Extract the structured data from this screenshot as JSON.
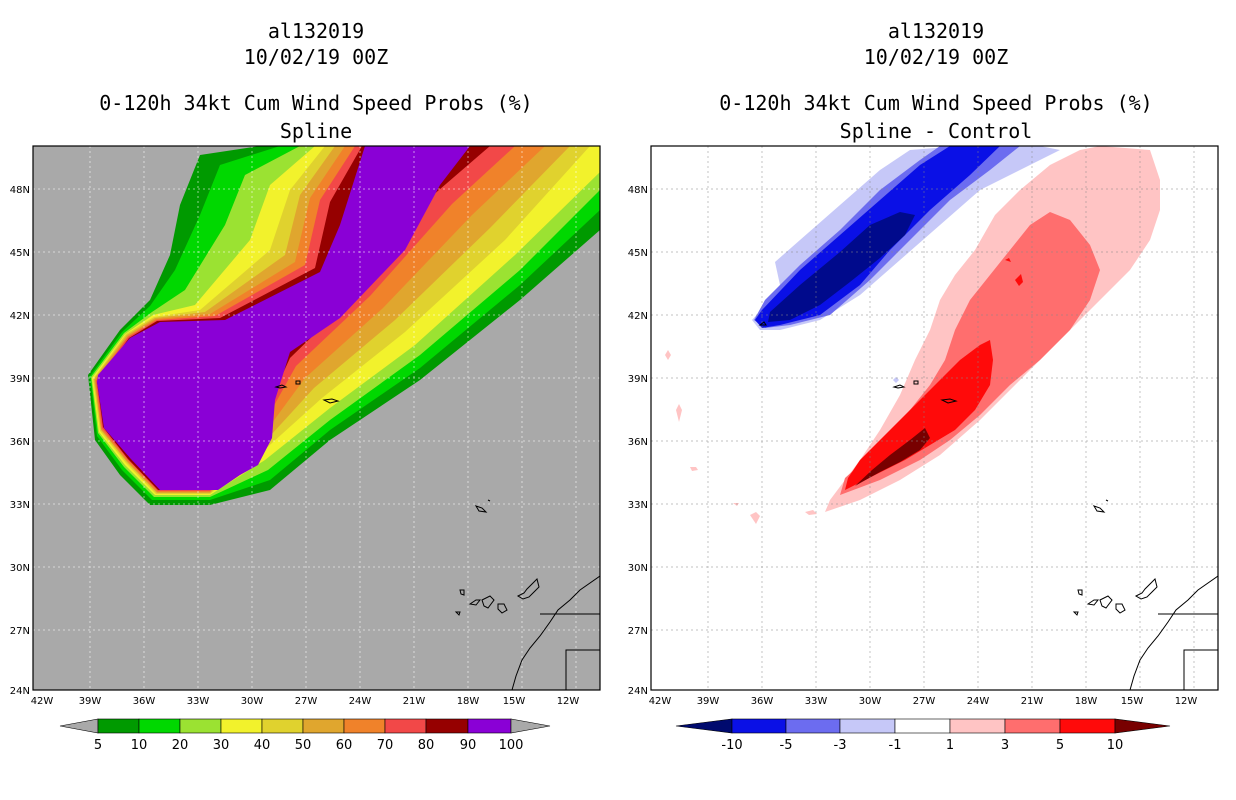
{
  "left_panel": {
    "storm_id": "al132019",
    "datetime": "10/02/19 00Z",
    "product": "0-120h 34kt Cum Wind Speed Probs (%)",
    "subtitle": "Spline",
    "colorbar": {
      "labels": [
        "5",
        "10",
        "20",
        "30",
        "40",
        "50",
        "60",
        "70",
        "80",
        "90",
        "100"
      ],
      "colors": [
        "#009a00",
        "#00d800",
        "#9be232",
        "#f2f22c",
        "#e0d22e",
        "#e0a62e",
        "#f0822a",
        "#f24848",
        "#960000",
        "#8a00d6"
      ],
      "end_color": "#a9a9a9"
    },
    "background_color": "#a9a9a9"
  },
  "right_panel": {
    "storm_id": "al132019",
    "datetime": "10/02/19 00Z",
    "product": "0-120h 34kt Cum Wind Speed Probs (%)",
    "subtitle": "Spline - Control",
    "colorbar": {
      "labels": [
        "-10",
        "-5",
        "-3",
        "-1",
        "1",
        "3",
        "5",
        "10"
      ],
      "colors": [
        "#000a8c",
        "#0a10e6",
        "#6c6cf0",
        "#c6c8f8",
        "#ffffff",
        "#ffc4c4",
        "#ff6e6e",
        "#ff0a0a"
      ],
      "end_low": "#000a6e",
      "end_high": "#780000"
    },
    "background_color": "#ffffff"
  },
  "axes": {
    "lat_labels": [
      "48N",
      "45N",
      "42N",
      "39N",
      "36N",
      "33N",
      "30N",
      "27N",
      "24N"
    ],
    "lon_labels": [
      "42W",
      "39W",
      "36W",
      "33W",
      "30W",
      "27W",
      "24W",
      "21W",
      "18W",
      "15W",
      "12W"
    ]
  }
}
